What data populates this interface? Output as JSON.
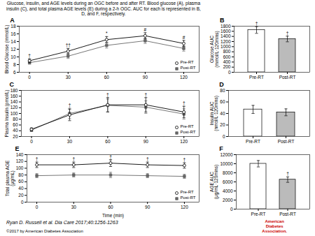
{
  "title": "Glucose, insulin, and AGE levels during an OGC before and after RT. Blood glucose (A), plasma\ninsulin (C), and total plasma AGE levels (E) during a 2-h OGC. AUC for each is represented in B,\nD, and F, respectively.",
  "annotations": [
    {
      "text": "Ryan D. Russell et al. Dia Care 2017;40:1256-1263"
    },
    {
      "text": "©2017 by American Diabetes Association"
    },
    {
      "text": "American\nDiabetes\nAssociation.",
      "color": "#cc0000"
    }
  ],
  "chart_data": [
    {
      "type": "line",
      "title": "A",
      "x": [
        0,
        30,
        60,
        90,
        120
      ],
      "series": [
        {
          "name": "Pre-RT",
          "color": "black",
          "marker": "open_circle",
          "values": [
            9.0,
            11.5,
            14.5,
            15.5,
            13.5
          ],
          "errors": [
            0.5,
            0.7,
            0.8,
            0.8,
            0.8
          ]
        },
        {
          "name": "Post-RT",
          "color": "#666666",
          "marker": "square",
          "values": [
            8.5,
            10.2,
            13.0,
            14.2,
            12.2
          ],
          "errors": [
            0.4,
            0.6,
            0.7,
            0.7,
            0.7
          ]
        }
      ],
      "xlim": [
        -8,
        132
      ],
      "xticks": [
        0,
        30,
        60,
        90,
        120
      ],
      "ylim": [
        6,
        18
      ],
      "yticks": [
        6,
        8,
        10,
        12,
        14,
        16,
        18
      ],
      "ylabel": "Blood Glucose (mmol/L)",
      "legend": "lower right",
      "annotations": [
        {
          "x": 0,
          "text": "†"
        },
        {
          "x": 30,
          "text": "††"
        },
        {
          "x": 60,
          "text": "*"
        },
        {
          "x": 90,
          "text": "#"
        },
        {
          "x": 120,
          "text": "#"
        }
      ]
    },
    {
      "type": "bar",
      "title": "B",
      "categories": [
        "Pre-RT",
        "Post-RT"
      ],
      "values": [
        1650,
        1300
      ],
      "errors": [
        130,
        110
      ],
      "colors": [
        "white",
        "#bbbbbb"
      ],
      "ylim": [
        0,
        1800
      ],
      "yticks": [
        0,
        200,
        400,
        600,
        800,
        1000,
        1200,
        1400,
        1600,
        1800
      ],
      "ylabel": "Glucose AUC\n(mmol/L·120mins)",
      "annotations": [
        {
          "x": "Pre-RT",
          "text": "†"
        },
        {
          "x": "Post-RT",
          "text": "†"
        }
      ]
    },
    {
      "type": "line",
      "title": "C",
      "x": [
        0,
        30,
        60,
        90,
        120
      ],
      "series": [
        {
          "name": "Pre-RT",
          "color": "black",
          "marker": "open_circle",
          "values": [
            45,
            95,
            130,
            130,
            105
          ],
          "errors": [
            5,
            20,
            25,
            25,
            20
          ]
        },
        {
          "name": "Post-RT",
          "color": "#666666",
          "marker": "square",
          "values": [
            42,
            100,
            128,
            122,
            98
          ],
          "errors": [
            5,
            18,
            22,
            22,
            18
          ]
        }
      ],
      "xlim": [
        -8,
        132
      ],
      "xticks": [
        0,
        30,
        60,
        90,
        120
      ],
      "ylim": [
        20,
        180
      ],
      "yticks": [
        20,
        40,
        60,
        80,
        100,
        120,
        140,
        160,
        180
      ],
      "ylabel": "Plasma Insulin (pmol/L)",
      "legend": "lower right",
      "annotations": [
        {
          "x": 30,
          "text": "†"
        },
        {
          "x": 60,
          "text": "†"
        },
        {
          "x": 90,
          "text": "†"
        },
        {
          "x": 120,
          "text": "†"
        }
      ]
    },
    {
      "type": "bar",
      "title": "D",
      "categories": [
        "Pre-RT",
        "Post-RT"
      ],
      "values": [
        47,
        42
      ],
      "errors": [
        7,
        6
      ],
      "colors": [
        "white",
        "#bbbbbb"
      ],
      "ylim": [
        0,
        80
      ],
      "yticks": [
        0,
        20,
        40,
        60,
        80
      ],
      "ylabel": "Insulin AUC\n(nmol/L·120mins)"
    },
    {
      "type": "line",
      "title": "E",
      "x": [
        0,
        30,
        60,
        90,
        120
      ],
      "series": [
        {
          "name": "Pre-RT",
          "color": "black",
          "marker": "open_circle",
          "values": [
            110,
            110,
            115,
            110,
            108
          ],
          "errors": [
            8,
            8,
            10,
            8,
            8
          ]
        },
        {
          "name": "Post-RT",
          "color": "#666666",
          "marker": "square",
          "values": [
            78,
            80,
            80,
            78,
            76
          ],
          "errors": [
            6,
            6,
            8,
            6,
            6
          ]
        }
      ],
      "xlim": [
        -8,
        132
      ],
      "xticks": [
        0,
        30,
        60,
        90,
        120
      ],
      "ylim": [
        0,
        140
      ],
      "yticks": [
        0,
        20,
        40,
        60,
        80,
        100,
        120,
        140
      ],
      "xlabel": "Time (min)",
      "ylabel": "Total plasma AGE\n(μg/mL)",
      "legend": "lower right",
      "annotations": [
        {
          "x": 0,
          "text": "†"
        },
        {
          "x": 30,
          "text": "†"
        },
        {
          "x": 60,
          "text": "†"
        },
        {
          "x": 90,
          "text": "†"
        },
        {
          "x": 120,
          "text": "†"
        }
      ]
    },
    {
      "type": "bar",
      "title": "F",
      "categories": [
        "Pre-RT",
        "Post-RT"
      ],
      "values": [
        10000,
        6500
      ],
      "errors": [
        700,
        600
      ],
      "colors": [
        "white",
        "#bbbbbb"
      ],
      "ylim": [
        0,
        12000
      ],
      "yticks": [
        0,
        2000,
        4000,
        6000,
        8000,
        10000,
        12000
      ],
      "ylabel": "AGE AUC\n(μg/mL·120mins)",
      "annotations": [
        {
          "x": "Post-RT",
          "text": "†"
        }
      ]
    }
  ]
}
